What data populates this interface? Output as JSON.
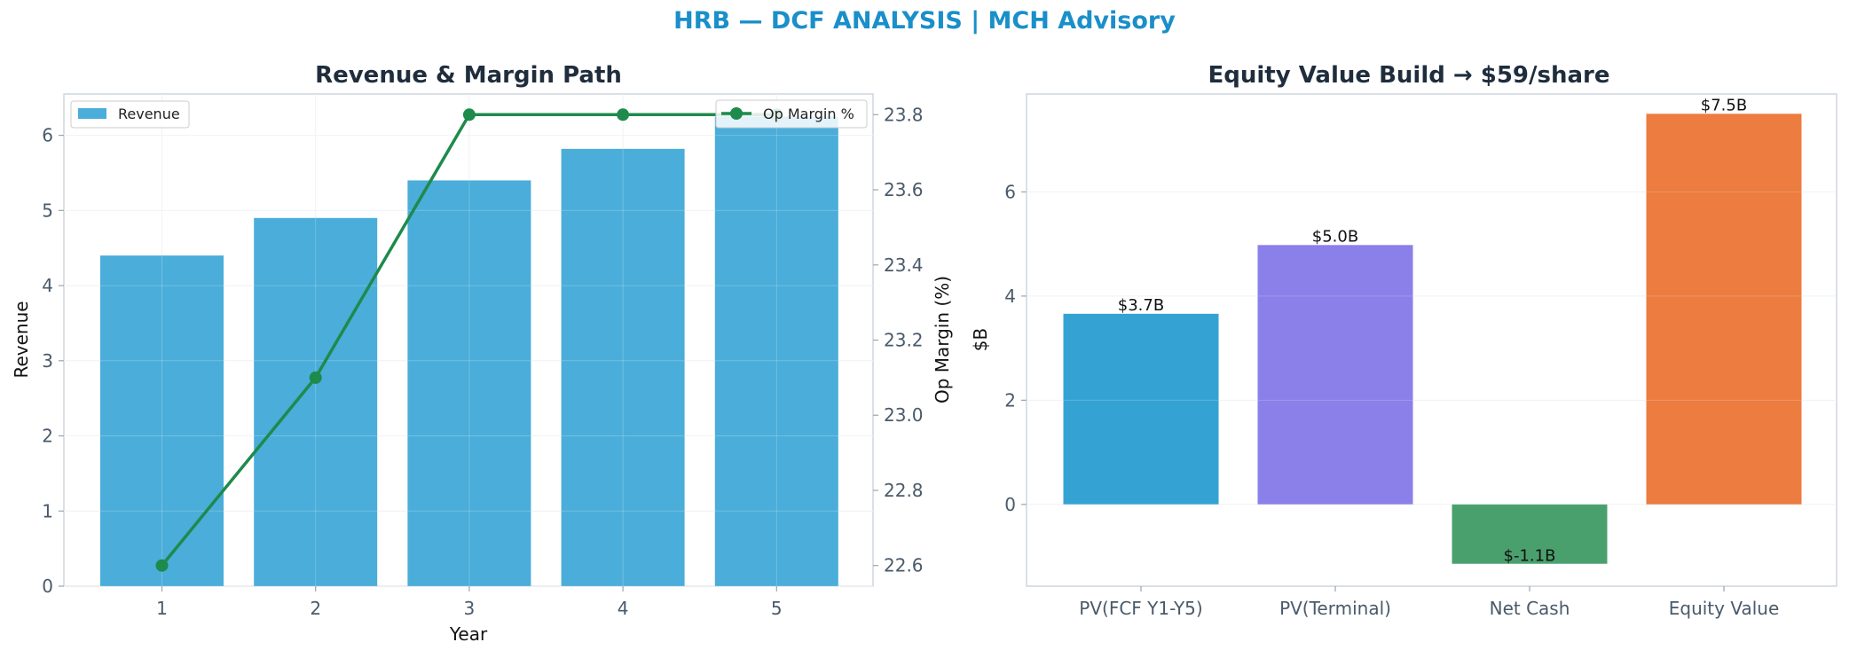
{
  "figure": {
    "title": "HRB — DCF ANALYSIS | MCH Advisory"
  },
  "colors": {
    "revenue_bar": "#4badd9",
    "margin_line": "#1e8a4c",
    "title_accent": "#1a8fc9",
    "equity_bars": [
      "#34a3d4",
      "#8b7fea",
      "#4aa06d",
      "#ec7c3f"
    ]
  },
  "chart_data": [
    {
      "type": "bar",
      "title": "Revenue & Margin Path",
      "xlabel": "Year",
      "ylabel": "Revenue",
      "y2label": "Op Margin (%)",
      "categories": [
        "1",
        "2",
        "3",
        "4",
        "5"
      ],
      "series": [
        {
          "name": "Revenue",
          "type": "bar",
          "axis": "left",
          "values": [
            4.4,
            4.9,
            5.4,
            5.82,
            6.25
          ]
        },
        {
          "name": "Op Margin %",
          "type": "line",
          "axis": "right",
          "values": [
            22.6,
            23.1,
            23.8,
            23.8,
            23.8
          ]
        }
      ],
      "ylim": [
        0,
        6.55
      ],
      "y2lim": [
        22.545,
        23.855
      ],
      "yticks": [
        "0",
        "1",
        "2",
        "3",
        "4",
        "5",
        "6"
      ],
      "y2ticks": [
        "22.6",
        "22.8",
        "23.0",
        "23.2",
        "23.4",
        "23.6",
        "23.8"
      ],
      "grid": true,
      "legend": {
        "left": "upper left",
        "right": "upper right"
      }
    },
    {
      "type": "bar",
      "title": "Equity Value Build → $59/share",
      "xlabel": "",
      "ylabel": "$B",
      "categories": [
        "PV(FCF Y1-Y5)",
        "PV(Terminal)",
        "Net Cash",
        "Equity Value"
      ],
      "values": [
        3.66,
        4.98,
        -1.14,
        7.5
      ],
      "data_labels": [
        "$3.7B",
        "$5.0B",
        "$-1.1B",
        "$7.5B"
      ],
      "ylim": [
        -1.57,
        7.88
      ],
      "yticks": [
        "0",
        "2",
        "4",
        "6"
      ],
      "grid": true
    }
  ]
}
